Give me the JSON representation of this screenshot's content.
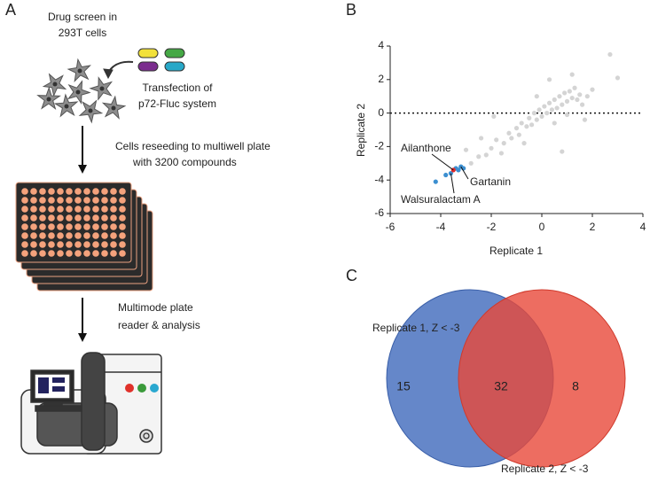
{
  "panel_a": {
    "label": "A",
    "screen_lines": [
      "Drug screen in",
      "293T cells"
    ],
    "transfection_lines": [
      "Transfection of",
      "p72-Fluc system"
    ],
    "reseed_lines": [
      "Cells reseeding to multiwell plate",
      "with 3200 compounds"
    ],
    "reader_lines": [
      "Multimode plate",
      "reader & analysis"
    ]
  },
  "panel_b": {
    "label": "B",
    "type": "scatter",
    "x_label": "Replicate 1",
    "y_label": "Replicate 2",
    "xlim": [
      -6,
      4
    ],
    "ylim": [
      -6,
      4
    ],
    "xticks": [
      -6,
      -4,
      -2,
      0,
      2,
      4
    ],
    "yticks": [
      -6,
      -4,
      -2,
      0,
      2,
      4
    ],
    "hline": 0,
    "series": [
      {
        "color": "#d4d4d4",
        "x": [
          -2.8,
          -2.5,
          -2.2,
          -2,
          -1.8,
          -1.5,
          -1.3,
          -1.2,
          -1,
          -0.9,
          -0.8,
          -0.6,
          -0.5,
          -0.4,
          -0.3,
          -0.2,
          -0.1,
          0,
          0.1,
          0.2,
          0.3,
          0.4,
          0.5,
          0.6,
          0.7,
          0.8,
          0.9,
          1,
          1.1,
          1.2,
          1.3,
          1.4,
          1.5,
          1.6,
          1.8,
          2,
          2.7,
          3,
          -1.6,
          -0.7,
          -2.4,
          0.5,
          1,
          -0.2,
          0.3,
          1.2,
          -1.9,
          1.7,
          -3,
          0.8
        ],
        "y": [
          -3,
          -2.6,
          -2.5,
          -2.1,
          -1.6,
          -1.8,
          -1.2,
          -1.5,
          -0.9,
          -1.3,
          -0.6,
          -0.8,
          -0.3,
          -0.7,
          0,
          -0.4,
          0.2,
          -0.2,
          0.4,
          0,
          0.6,
          0.2,
          0.8,
          0.3,
          1,
          0.5,
          1.2,
          0.7,
          1.3,
          0.9,
          1.5,
          0.8,
          1.1,
          0.5,
          1,
          1.4,
          3.5,
          2.1,
          -2.4,
          -1.8,
          -1.5,
          -0.6,
          -0.1,
          1,
          2,
          2.3,
          -0.2,
          -0.4,
          -2.2,
          -2.3
        ]
      },
      {
        "color": "#3c8fd0",
        "x": [
          -3.3,
          -3.2,
          -4.2,
          -3.8,
          -3.6,
          -3.1,
          -3.4
        ],
        "y": [
          -3.4,
          -3.2,
          -4.1,
          -3.7,
          -3.6,
          -3.3,
          -3.3
        ]
      },
      {
        "color": "#e02b2b",
        "x": [
          -3.5
        ],
        "y": [
          -3.4
        ]
      }
    ],
    "annotations": [
      {
        "text": "Ailanthone",
        "x": -3.5,
        "y": -3.4
      },
      {
        "text": "Gartanin",
        "x": -3.2,
        "y": -3.2
      },
      {
        "text": "Walsuralactam A",
        "x": -3.6,
        "y": -3.6
      }
    ]
  },
  "panel_c": {
    "label": "C",
    "sets": [
      {
        "label": "Replicate 1, Z < -3",
        "color": "#4a72c0"
      },
      {
        "label": "Replicate 2, Z < -3",
        "color": "#e8483a"
      }
    ],
    "counts": {
      "only_first": 15,
      "both": 32,
      "only_second": 8
    }
  }
}
